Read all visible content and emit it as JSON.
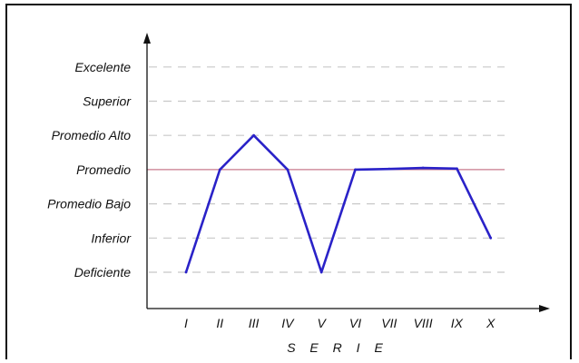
{
  "chart_data": {
    "type": "line",
    "xlabel": "S E R I E",
    "ylabel": "",
    "categories": [
      "I",
      "II",
      "III",
      "IV",
      "V",
      "VI",
      "VII",
      "VIII",
      "IX",
      "X"
    ],
    "levels": [
      "Deficiente",
      "Inferior",
      "Promedio Bajo",
      "Promedio",
      "Promedio Alto",
      "Superior",
      "Excelente"
    ],
    "ylim": [
      0.5,
      7.3
    ],
    "values": [
      1,
      4,
      5,
      4,
      1,
      4,
      4.02,
      4.05,
      4.03,
      2
    ],
    "reference_line": 4,
    "grid": "dashed horizontal at each level",
    "colors": {
      "series": "#2a22c8",
      "reference": "#c87a8c",
      "grid": "#c8c8c8",
      "axis": "#111111"
    }
  }
}
